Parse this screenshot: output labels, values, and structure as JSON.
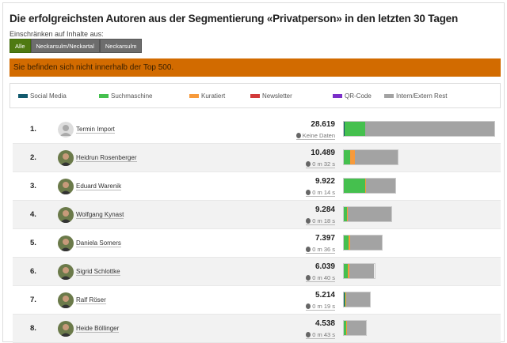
{
  "title": "Die erfolgreichsten Autoren aus der Segmentierung «Privatperson» in den letzten 30 Tagen",
  "restrict_label": "Einschränken auf Inhalte aus:",
  "filters": [
    {
      "label": "Alle",
      "active": true
    },
    {
      "label": "Neckarsulm/Neckartal",
      "active": false
    },
    {
      "label": "Neckarsulm",
      "active": false
    }
  ],
  "alert": "Sie befinden sich nicht innerhalb der Top 500.",
  "legend": [
    {
      "label": "Social Media",
      "color": "#125a6e"
    },
    {
      "label": "Suchmaschine",
      "color": "#45c04e"
    },
    {
      "label": "Kuratiert",
      "color": "#f79a3b"
    },
    {
      "label": "Newsletter",
      "color": "#d23a3a"
    },
    {
      "label": "QR-Code",
      "color": "#7b2fc9"
    },
    {
      "label": "Intern/Extern Rest",
      "color": "#a3a3a3"
    }
  ],
  "max_views": 28619,
  "authors": [
    {
      "rank": "1.",
      "name": "Termin Import",
      "views": "28.619",
      "views_num": 28619,
      "time": "Keine Daten",
      "avatar": "placeholder",
      "share_pct": {
        "social": 0.5,
        "search": 13.5,
        "curated": 0
      }
    },
    {
      "rank": "2.",
      "name": "Heidrun Rosenberger",
      "views": "10.489",
      "views_num": 10489,
      "time": "0 m 32 s",
      "avatar": "photo",
      "share_pct": {
        "social": 0,
        "search": 11,
        "curated": 9
      }
    },
    {
      "rank": "3.",
      "name": "Eduard Warenik",
      "views": "9.922",
      "views_num": 9922,
      "time": "0 m 14 s",
      "avatar": "photo",
      "share_pct": {
        "social": 0,
        "search": 42,
        "curated": 1.5
      }
    },
    {
      "rank": "4.",
      "name": "Wolfgang Kynast",
      "views": "9.284",
      "views_num": 9284,
      "time": "0 m 18 s",
      "avatar": "photo",
      "share_pct": {
        "social": 0,
        "search": 6,
        "curated": 1.5
      }
    },
    {
      "rank": "5.",
      "name": "Daniela Somers",
      "views": "7.397",
      "views_num": 7397,
      "time": "0 m 36 s",
      "avatar": "photo",
      "share_pct": {
        "social": 0,
        "search": 12,
        "curated": 5
      }
    },
    {
      "rank": "6.",
      "name": "Sigrid Schlottke",
      "views": "6.039",
      "views_num": 6039,
      "time": "0 m 40 s",
      "avatar": "photo",
      "share_pct": {
        "social": 0,
        "search": 12,
        "curated": 5
      }
    },
    {
      "rank": "7.",
      "name": "Ralf Röser",
      "views": "5.214",
      "views_num": 5214,
      "time": "0 m 19 s",
      "avatar": "photo",
      "share_pct": {
        "social": 3,
        "search": 3,
        "curated": 3
      }
    },
    {
      "rank": "8.",
      "name": "Heide Böllinger",
      "views": "4.538",
      "views_num": 4538,
      "time": "0 m 43 s",
      "avatar": "photo",
      "share_pct": {
        "social": 0,
        "search": 10,
        "curated": 3
      }
    }
  ]
}
